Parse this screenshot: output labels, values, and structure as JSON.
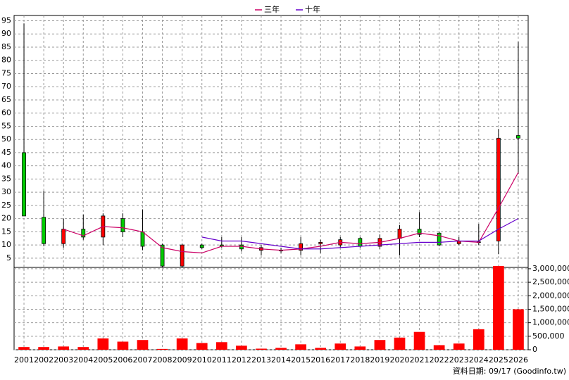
{
  "chart_data": {
    "type": "candlestick",
    "categories": [
      "2001",
      "2002",
      "2003",
      "2004",
      "2005",
      "2006",
      "2007",
      "2008",
      "2009",
      "2010",
      "2011",
      "2012",
      "2013",
      "2014",
      "2015",
      "2016",
      "2017",
      "2018",
      "2019",
      "2020",
      "2021",
      "2022",
      "2023",
      "2024",
      "2025",
      "2026"
    ],
    "open": [
      45,
      20.5,
      10.5,
      16,
      13,
      20,
      15,
      10,
      2,
      10,
      10,
      10,
      8,
      8,
      8,
      10.5,
      10,
      12.5,
      9.5,
      12.5,
      16,
      14.5,
      10.5,
      11,
      11.5,
      51.5
    ],
    "high": [
      94,
      30.5,
      20,
      21.5,
      22,
      22,
      23.5,
      10.5,
      10.5,
      10.5,
      13,
      13,
      10,
      9,
      13,
      12,
      13,
      13,
      14,
      17.5,
      22.5,
      15,
      13,
      18,
      54,
      87
    ],
    "low": [
      21,
      9.5,
      9,
      12,
      10,
      13,
      8,
      1.5,
      1.5,
      8.5,
      9,
      7.5,
      6,
      7,
      6,
      7,
      9,
      9,
      8.5,
      6,
      13,
      9.5,
      10,
      10,
      6.5,
      37
    ],
    "close": [
      21,
      10.5,
      16,
      13,
      21,
      15,
      9.5,
      2,
      10,
      9,
      9.5,
      8.5,
      9,
      7.8,
      10.5,
      11,
      12,
      9.5,
      12.5,
      16,
      14,
      10,
      11.5,
      11.2,
      50.5,
      50.5
    ],
    "up_color": "#ff0000",
    "down_color": "#00cc00",
    "series": [
      {
        "name": "三年",
        "color": "#cc0066",
        "values": [
          null,
          null,
          16,
          13.5,
          17,
          16.5,
          15,
          9,
          7.5,
          7,
          9.5,
          9.5,
          8.5,
          8,
          8.5,
          9.5,
          11,
          10.5,
          11,
          12.5,
          14.5,
          13.5,
          11.5,
          11,
          24,
          37.5
        ]
      },
      {
        "name": "十年",
        "color": "#6600cc",
        "values": [
          null,
          null,
          null,
          null,
          null,
          null,
          null,
          null,
          null,
          13,
          11.5,
          11.5,
          10.5,
          9.5,
          8.5,
          8.5,
          9,
          9.5,
          10,
          10.5,
          11,
          11,
          11.5,
          11.5,
          16,
          20
        ]
      }
    ],
    "volume": {
      "axis": "y2",
      "color": "#ff0000",
      "values": [
        100000,
        100000,
        120000,
        100000,
        420000,
        300000,
        360000,
        30000,
        420000,
        250000,
        280000,
        150000,
        40000,
        70000,
        200000,
        70000,
        230000,
        120000,
        360000,
        450000,
        660000,
        170000,
        230000,
        760000,
        3100000,
        1500000
      ]
    },
    "ylim": [
      1.5,
      97
    ],
    "yticks": [
      5,
      10,
      15,
      20,
      25,
      30,
      35,
      40,
      45,
      50,
      55,
      60,
      65,
      70,
      75,
      80,
      85,
      90,
      95
    ],
    "y2lim": [
      0,
      3050000
    ],
    "y2ticks": [
      0,
      {
        "value": 500000,
        "label": "500,000"
      },
      {
        "value": 1000000,
        "label": "1,000,000"
      },
      {
        "value": 1500000,
        "label": "1,500,000"
      },
      {
        "value": 2000000,
        "label": "2,000,000"
      },
      {
        "value": 2500000,
        "label": "2,500,000"
      },
      {
        "value": 3000000,
        "label": "3,000,000"
      }
    ],
    "grid": true,
    "legend": "top",
    "source": "資料日期: 09/17 (Goodinfo.tw)"
  }
}
